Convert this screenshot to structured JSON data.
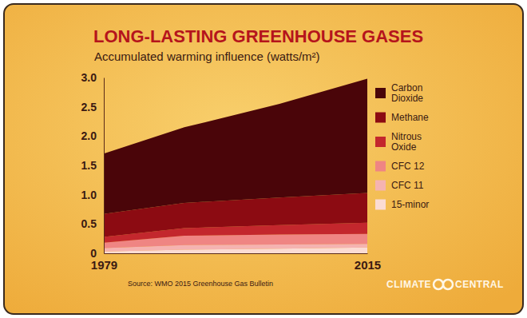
{
  "chart_data": {
    "type": "area",
    "title": "LONG-LASTING GREENHOUSE GASES",
    "subtitle": "Accumulated warming influence (watts/m²)",
    "source": "Source: WMO 2015 Greenhouse Gas Bulletin",
    "credit": "CLIMATE CENTRAL",
    "stacked": true,
    "legend": "right",
    "grid": false,
    "x": [
      1979,
      1990,
      2003,
      2015
    ],
    "xlim": [
      1979,
      2015
    ],
    "xticks": [
      1979,
      2015
    ],
    "ylim": [
      0,
      3
    ],
    "yticks": [
      0,
      0.5,
      {
        "value": 1,
        "label": "1.0"
      },
      1.5,
      {
        "value": 2,
        "label": "2.0"
      },
      2.5,
      {
        "value": 3,
        "label": "3.0"
      }
    ],
    "series": [
      {
        "name": "Carbon Dioxide",
        "color": "#4a0509",
        "values": [
          1.03,
          1.29,
          1.6,
          1.95
        ]
      },
      {
        "name": "Methane",
        "color": "#8c0b12",
        "values": [
          0.39,
          0.43,
          0.47,
          0.51
        ]
      },
      {
        "name": "Nitrous Oxide",
        "color": "#c3272d",
        "values": [
          0.1,
          0.13,
          0.16,
          0.19
        ]
      },
      {
        "name": "CFC 12",
        "color": "#ef8583",
        "values": [
          0.09,
          0.16,
          0.17,
          0.17
        ]
      },
      {
        "name": "CFC 11",
        "color": "#f5b3b1",
        "values": [
          0.06,
          0.08,
          0.07,
          0.06
        ]
      },
      {
        "name": "15-minor",
        "color": "#fbdcd4",
        "values": [
          0.03,
          0.06,
          0.08,
          0.1
        ]
      }
    ]
  }
}
